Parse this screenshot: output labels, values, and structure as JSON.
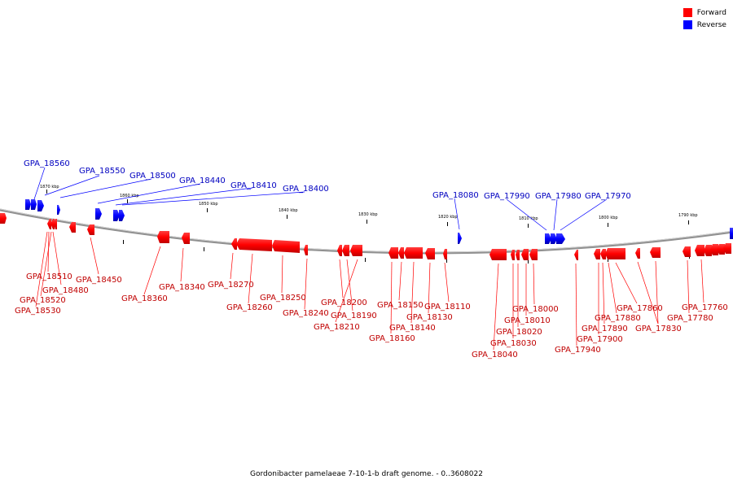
{
  "legend": {
    "forward_label": "Forward",
    "reverse_label": "Reverse",
    "forward_color": "#ff0000",
    "reverse_color": "#0000ff"
  },
  "caption": "Gordonibacter pamelaeae 7-10-1-b draft genome. - 0..3608022",
  "scale_labels": [
    "1870 kbp",
    "1860 kbp",
    "1850 kbp",
    "1840 kbp",
    "1830 kbp",
    "1820 kbp",
    "1810 kbp",
    "1800 kbp",
    "1790 kbp"
  ],
  "reverse_genes": [
    "GPA_18560",
    "GPA_18550",
    "GPA_18500",
    "GPA_18440",
    "GPA_18410",
    "GPA_18400",
    "GPA_18080",
    "GPA_17990",
    "GPA_17980",
    "GPA_17970"
  ],
  "forward_genes": [
    "GPA_18510",
    "GPA_18480",
    "GPA_18520",
    "GPA_18530",
    "GPA_18450",
    "GPA_18360",
    "GPA_18340",
    "GPA_18270",
    "GPA_18260",
    "GPA_18250",
    "GPA_18240",
    "GPA_18200",
    "GPA_18190",
    "GPA_18210",
    "GPA_18150",
    "GPA_18160",
    "GPA_18140",
    "GPA_18130",
    "GPA_18110",
    "GPA_18000",
    "GPA_18010",
    "GPA_18020",
    "GPA_18030",
    "GPA_18040",
    "GPA_17940",
    "GPA_17900",
    "GPA_17890",
    "GPA_17880",
    "GPA_17860",
    "GPA_17830",
    "GPA_17780",
    "GPA_17760"
  ]
}
